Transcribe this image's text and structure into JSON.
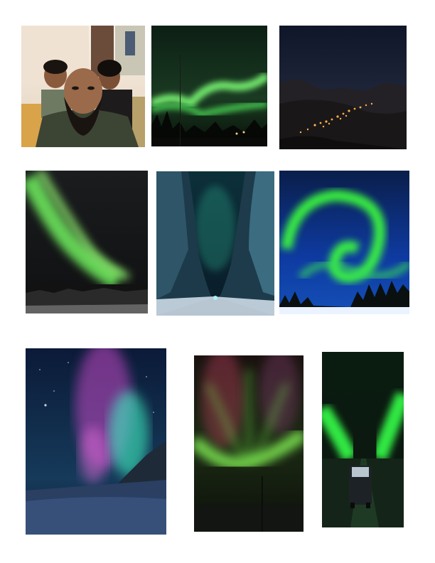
{
  "page": {
    "background": "#ffffff"
  },
  "photos": [
    {
      "subject": "family-selfie",
      "palette": [
        "#f1e4d6",
        "#3a3f34",
        "#1a1714"
      ]
    },
    {
      "subject": "aurora-over-trees",
      "palette": [
        "#0d1a12",
        "#5ed35a",
        "#0a0d0a"
      ]
    },
    {
      "subject": "night-valley-town-lights",
      "palette": [
        "#141a2c",
        "#ffb14a",
        "#1d1c20"
      ]
    },
    {
      "subject": "aurora-over-hills",
      "palette": [
        "#121316",
        "#7cf06a",
        "#2a2b2c"
      ]
    },
    {
      "subject": "aurora-canyon-cliffs",
      "palette": [
        "#0a2535",
        "#3f7f9a",
        "#0b1c2c"
      ]
    },
    {
      "subject": "aurora-swirl-winter-forest",
      "palette": [
        "#0b2a6d",
        "#3cff3c",
        "#e8f2ff"
      ]
    },
    {
      "subject": "pink-green-aurora-snow-field",
      "palette": [
        "#0a1d3a",
        "#d04ac8",
        "#3df0c0"
      ]
    },
    {
      "subject": "aurora-corona-pole",
      "palette": [
        "#10140f",
        "#8aff5a",
        "#d54a6a"
      ]
    },
    {
      "subject": "aurora-above-car-road",
      "palette": [
        "#0a1a10",
        "#34ff4a",
        "#b8c6d0"
      ]
    }
  ]
}
